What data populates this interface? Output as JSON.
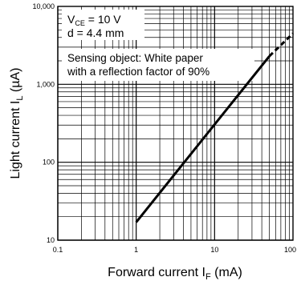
{
  "chart_data": {
    "type": "line",
    "xscale": "log",
    "yscale": "log",
    "xlim": [
      0.1,
      100
    ],
    "ylim": [
      10,
      10000
    ],
    "grid": true,
    "xlabel": {
      "main": "Forward current I",
      "sub": "F",
      "unit": " (mA)"
    },
    "ylabel": {
      "main": "Light current I",
      "sub": "L",
      "unit": " (µA)"
    },
    "x_ticks": [
      {
        "value": 0.1,
        "label": "0.1"
      },
      {
        "value": 1,
        "label": "1"
      },
      {
        "value": 10,
        "label": "10"
      },
      {
        "value": 100,
        "label": "100"
      }
    ],
    "y_ticks": [
      {
        "value": 10,
        "label": "10"
      },
      {
        "value": 100,
        "label": "100"
      },
      {
        "value": 1000,
        "label": "1,000"
      },
      {
        "value": 10000,
        "label": "10,000"
      }
    ],
    "conditions": {
      "vce_prefix": "V",
      "vce_sub": "CE",
      "vce_value": " = 10 V",
      "distance": "d = 4.4 mm"
    },
    "annotation": [
      "Sensing object: White paper",
      "with a reflection factor of 90%"
    ],
    "series": [
      {
        "solid": [
          {
            "x": 1,
            "y": 17
          },
          {
            "x": 50,
            "y": 2300
          }
        ],
        "dashed": [
          {
            "x": 50,
            "y": 2300
          },
          {
            "x": 100,
            "y": 4500
          }
        ]
      }
    ]
  }
}
